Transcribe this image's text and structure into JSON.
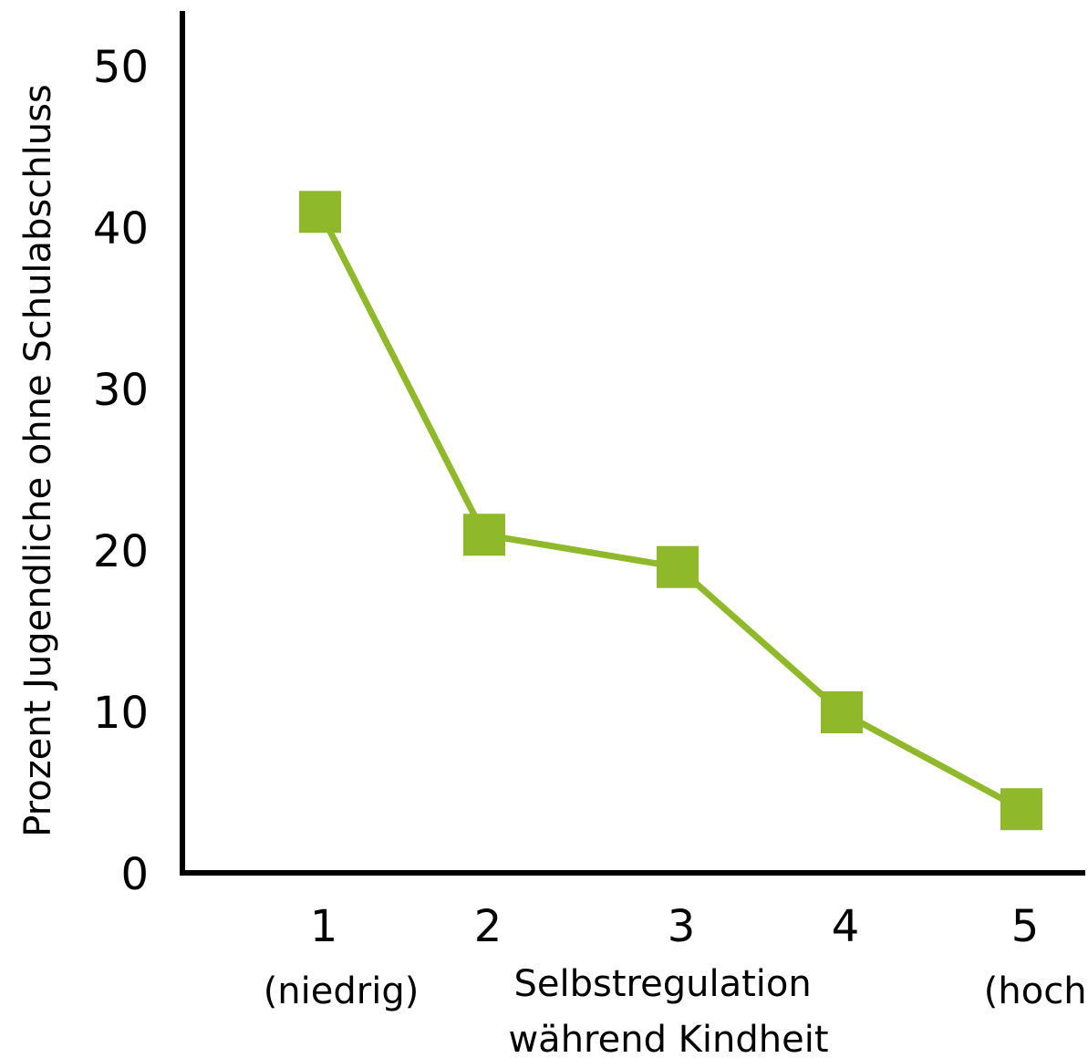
{
  "chart_data": {
    "type": "line",
    "title": "",
    "xlabel": [
      "Selbstregulation",
      "während Kindheit"
    ],
    "ylabel": "Prozent Jugendliche ohne Schulabschluss",
    "categories": [
      "1",
      "2",
      "3",
      "4",
      "5"
    ],
    "category_notes": [
      "(niedrig)",
      "",
      "",
      "",
      "(hoch)"
    ],
    "series": [
      {
        "values": [
          41,
          21,
          19,
          10,
          4
        ],
        "color": "#8fb82b",
        "marker": "square"
      }
    ],
    "yticks": [
      0,
      10,
      20,
      30,
      40,
      50
    ],
    "ylim": [
      0,
      50
    ],
    "grid": false,
    "legend": "none"
  }
}
